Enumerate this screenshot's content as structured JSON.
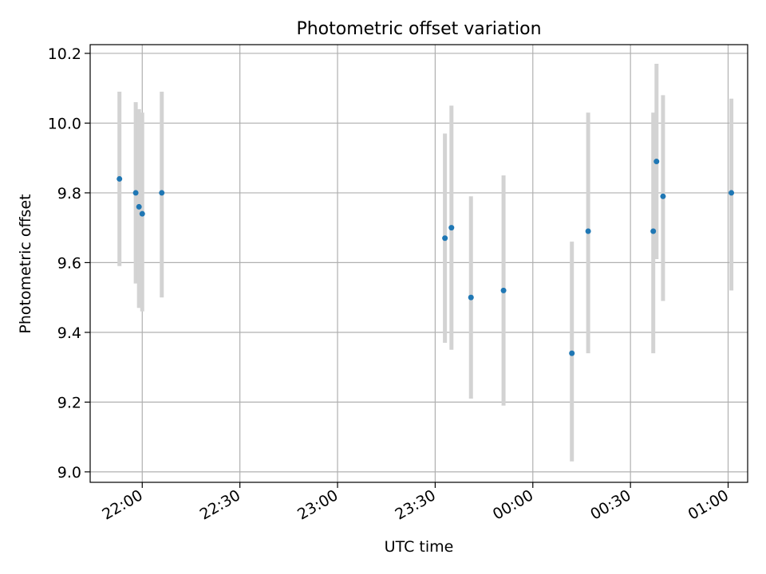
{
  "chart_data": {
    "type": "scatter",
    "title": "Photometric offset variation",
    "xlabel": "UTC time",
    "ylabel": "Photometric offset",
    "x_ticks": [
      "22:00",
      "22:30",
      "23:00",
      "23:30",
      "00:00",
      "00:30",
      "01:00"
    ],
    "y_ticks": [
      "9.0",
      "9.2",
      "9.4",
      "9.6",
      "9.8",
      "10.0",
      "10.2"
    ],
    "xlim": [
      "21:44",
      "01:06"
    ],
    "ylim": [
      8.97,
      10.225
    ],
    "grid": true,
    "error_bar_color": "#d3d3d3",
    "point_color": "#1f77b4",
    "points": [
      {
        "time": "21:53",
        "value": 9.84,
        "low": 9.59,
        "high": 10.09
      },
      {
        "time": "21:58",
        "value": 9.8,
        "low": 9.54,
        "high": 10.06
      },
      {
        "time": "21:59",
        "value": 9.76,
        "low": 9.47,
        "high": 10.04
      },
      {
        "time": "22:00",
        "value": 9.74,
        "low": 9.46,
        "high": 10.03
      },
      {
        "time": "22:06",
        "value": 9.8,
        "low": 9.5,
        "high": 10.09
      },
      {
        "time": "23:33",
        "value": 9.67,
        "low": 9.37,
        "high": 9.97
      },
      {
        "time": "23:35",
        "value": 9.7,
        "low": 9.35,
        "high": 10.05
      },
      {
        "time": "23:41",
        "value": 9.5,
        "low": 9.21,
        "high": 9.79
      },
      {
        "time": "23:51",
        "value": 9.52,
        "low": 9.19,
        "high": 9.85
      },
      {
        "time": "00:12",
        "value": 9.34,
        "low": 9.03,
        "high": 9.66
      },
      {
        "time": "00:17",
        "value": 9.69,
        "low": 9.34,
        "high": 10.03
      },
      {
        "time": "00:37",
        "value": 9.69,
        "low": 9.34,
        "high": 10.03
      },
      {
        "time": "00:38",
        "value": 9.89,
        "low": 9.61,
        "high": 10.17
      },
      {
        "time": "00:40",
        "value": 9.79,
        "low": 9.49,
        "high": 10.08
      },
      {
        "time": "01:01",
        "value": 9.8,
        "low": 9.52,
        "high": 10.07
      }
    ]
  }
}
